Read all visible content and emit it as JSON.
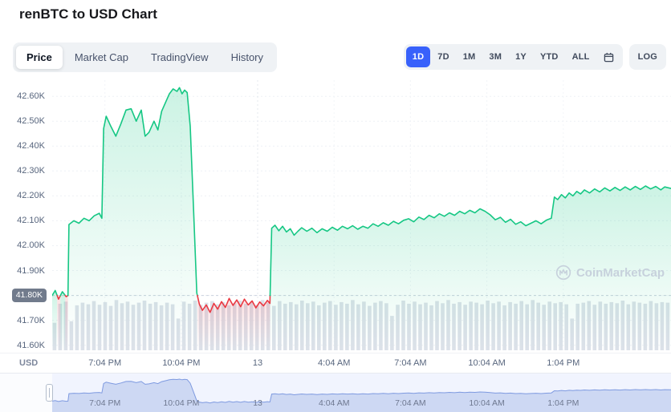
{
  "header": {
    "title": "renBTC to USD Chart"
  },
  "toolbar": {
    "tabs": [
      {
        "label": "Price",
        "active": true
      },
      {
        "label": "Market Cap",
        "active": false
      },
      {
        "label": "TradingView",
        "active": false
      },
      {
        "label": "History",
        "active": false
      }
    ],
    "ranges": [
      {
        "label": "1D",
        "active": true
      },
      {
        "label": "7D",
        "active": false
      },
      {
        "label": "1M",
        "active": false
      },
      {
        "label": "3M",
        "active": false
      },
      {
        "label": "1Y",
        "active": false
      },
      {
        "label": "YTD",
        "active": false
      },
      {
        "label": "ALL",
        "active": false
      }
    ],
    "log_label": "LOG"
  },
  "axis": {
    "currency_label": "USD"
  },
  "watermark": {
    "text": "CoinMarketCap"
  },
  "colors": {
    "up": "#16c784",
    "down": "#ea3943",
    "accent": "#3861fb",
    "volume": "#dce1e9",
    "nav_fill": "#c9d5f2",
    "nav_line": "#7e9ae0",
    "axis_text": "#58667e",
    "badge_bg": "#717b8c"
  },
  "chart_data": {
    "type": "line",
    "title": "renBTC to USD Chart",
    "unit": "USD",
    "range_selected": "1D",
    "open": 41800,
    "ylim": [
      41570,
      42665
    ],
    "t_range": [
      0,
      24.3
    ],
    "yticks": [
      {
        "v": 42600,
        "label": "42.60K",
        "badge": false
      },
      {
        "v": 42500,
        "label": "42.50K",
        "badge": false
      },
      {
        "v": 42400,
        "label": "42.40K",
        "badge": false
      },
      {
        "v": 42300,
        "label": "42.30K",
        "badge": false
      },
      {
        "v": 42200,
        "label": "42.20K",
        "badge": false
      },
      {
        "v": 42100,
        "label": "42.10K",
        "badge": false
      },
      {
        "v": 42000,
        "label": "42.00K",
        "badge": false
      },
      {
        "v": 41900,
        "label": "41.90K",
        "badge": false
      },
      {
        "v": 41800,
        "label": "41.80K",
        "badge": true
      },
      {
        "v": 41700,
        "label": "41.70K",
        "badge": false
      },
      {
        "v": 41600,
        "label": "41.60K",
        "badge": false
      }
    ],
    "xticks": [
      {
        "label": "7:04 PM",
        "t": 2.07,
        "day": false
      },
      {
        "label": "10:04 PM",
        "t": 5.07,
        "day": false
      },
      {
        "label": "13",
        "t": 8.07,
        "day": true
      },
      {
        "label": "4:04 AM",
        "t": 11.07,
        "day": false
      },
      {
        "label": "7:04 AM",
        "t": 14.07,
        "day": false
      },
      {
        "label": "10:04 AM",
        "t": 17.07,
        "day": false
      },
      {
        "label": "1:04 PM",
        "t": 20.07,
        "day": false
      }
    ],
    "series": [
      [
        0,
        41800
      ],
      [
        0.12,
        41820
      ],
      [
        0.25,
        41785
      ],
      [
        0.4,
        41815
      ],
      [
        0.55,
        41795
      ],
      [
        0.62,
        41800
      ],
      [
        0.66,
        42085
      ],
      [
        0.85,
        42100
      ],
      [
        1.05,
        42090
      ],
      [
        1.25,
        42110
      ],
      [
        1.45,
        42100
      ],
      [
        1.65,
        42120
      ],
      [
        1.85,
        42130
      ],
      [
        1.95,
        42110
      ],
      [
        2.02,
        42470
      ],
      [
        2.12,
        42520
      ],
      [
        2.3,
        42480
      ],
      [
        2.5,
        42440
      ],
      [
        2.7,
        42490
      ],
      [
        2.9,
        42545
      ],
      [
        3.1,
        42550
      ],
      [
        3.3,
        42500
      ],
      [
        3.5,
        42545
      ],
      [
        3.65,
        42440
      ],
      [
        3.8,
        42455
      ],
      [
        4.0,
        42500
      ],
      [
        4.15,
        42465
      ],
      [
        4.3,
        42540
      ],
      [
        4.45,
        42575
      ],
      [
        4.6,
        42610
      ],
      [
        4.75,
        42630
      ],
      [
        4.9,
        42620
      ],
      [
        5.0,
        42635
      ],
      [
        5.1,
        42610
      ],
      [
        5.2,
        42625
      ],
      [
        5.3,
        42615
      ],
      [
        5.42,
        42480
      ],
      [
        5.55,
        42150
      ],
      [
        5.68,
        41810
      ],
      [
        5.78,
        41765
      ],
      [
        5.9,
        41740
      ],
      [
        6.05,
        41762
      ],
      [
        6.2,
        41732
      ],
      [
        6.35,
        41768
      ],
      [
        6.5,
        41745
      ],
      [
        6.65,
        41775
      ],
      [
        6.8,
        41752
      ],
      [
        6.95,
        41788
      ],
      [
        7.1,
        41760
      ],
      [
        7.25,
        41782
      ],
      [
        7.4,
        41755
      ],
      [
        7.55,
        41785
      ],
      [
        7.7,
        41762
      ],
      [
        7.85,
        41778
      ],
      [
        8.0,
        41750
      ],
      [
        8.15,
        41774
      ],
      [
        8.3,
        41758
      ],
      [
        8.45,
        41780
      ],
      [
        8.55,
        41768
      ],
      [
        8.62,
        42070
      ],
      [
        8.75,
        42082
      ],
      [
        8.9,
        42060
      ],
      [
        9.05,
        42078
      ],
      [
        9.2,
        42055
      ],
      [
        9.35,
        42068
      ],
      [
        9.5,
        42042
      ],
      [
        9.65,
        42058
      ],
      [
        9.8,
        42072
      ],
      [
        10.0,
        42058
      ],
      [
        10.2,
        42070
      ],
      [
        10.4,
        42052
      ],
      [
        10.6,
        42068
      ],
      [
        10.8,
        42058
      ],
      [
        11.0,
        42074
      ],
      [
        11.2,
        42062
      ],
      [
        11.4,
        42078
      ],
      [
        11.6,
        42068
      ],
      [
        11.8,
        42080
      ],
      [
        12.0,
        42066
      ],
      [
        12.2,
        42078
      ],
      [
        12.4,
        42070
      ],
      [
        12.6,
        42088
      ],
      [
        12.8,
        42078
      ],
      [
        13.0,
        42092
      ],
      [
        13.2,
        42082
      ],
      [
        13.4,
        42098
      ],
      [
        13.6,
        42088
      ],
      [
        13.8,
        42102
      ],
      [
        14.0,
        42108
      ],
      [
        14.2,
        42096
      ],
      [
        14.4,
        42115
      ],
      [
        14.6,
        42105
      ],
      [
        14.8,
        42122
      ],
      [
        15.0,
        42112
      ],
      [
        15.2,
        42128
      ],
      [
        15.4,
        42118
      ],
      [
        15.6,
        42132
      ],
      [
        15.8,
        42122
      ],
      [
        16.0,
        42138
      ],
      [
        16.2,
        42128
      ],
      [
        16.4,
        42142
      ],
      [
        16.6,
        42132
      ],
      [
        16.8,
        42148
      ],
      [
        17.0,
        42138
      ],
      [
        17.2,
        42124
      ],
      [
        17.4,
        42104
      ],
      [
        17.6,
        42114
      ],
      [
        17.8,
        42094
      ],
      [
        18.0,
        42106
      ],
      [
        18.2,
        42086
      ],
      [
        18.4,
        42096
      ],
      [
        18.6,
        42080
      ],
      [
        18.8,
        42090
      ],
      [
        19.0,
        42100
      ],
      [
        19.2,
        42088
      ],
      [
        19.4,
        42102
      ],
      [
        19.6,
        42110
      ],
      [
        19.72,
        42195
      ],
      [
        19.85,
        42185
      ],
      [
        20.0,
        42205
      ],
      [
        20.15,
        42192
      ],
      [
        20.3,
        42212
      ],
      [
        20.45,
        42200
      ],
      [
        20.6,
        42218
      ],
      [
        20.75,
        42208
      ],
      [
        20.9,
        42224
      ],
      [
        21.1,
        42212
      ],
      [
        21.3,
        42228
      ],
      [
        21.5,
        42216
      ],
      [
        21.7,
        42232
      ],
      [
        21.9,
        42220
      ],
      [
        22.1,
        42234
      ],
      [
        22.3,
        42222
      ],
      [
        22.5,
        42236
      ],
      [
        22.7,
        42224
      ],
      [
        22.9,
        42238
      ],
      [
        23.1,
        42226
      ],
      [
        23.3,
        42240
      ],
      [
        23.5,
        42228
      ],
      [
        23.7,
        42238
      ],
      [
        23.9,
        42224
      ],
      [
        24.05,
        42236
      ],
      [
        24.3,
        42230
      ]
    ],
    "volumes": [
      0.52,
      0.88,
      0.92,
      0.55,
      0.85,
      0.9,
      0.87,
      0.93,
      0.86,
      0.91,
      0.84,
      0.95,
      0.89,
      0.92,
      0.86,
      0.9,
      0.94,
      0.88,
      0.91,
      0.85,
      0.9,
      0.87,
      0.6,
      0.92,
      0.88,
      0.94,
      0.86,
      0.9,
      0.93,
      0.87,
      0.91,
      0.85,
      0.89,
      0.94,
      0.88,
      0.92,
      0.86,
      0.95,
      0.9,
      0.84,
      0.93,
      0.88,
      0.91,
      0.87,
      0.94,
      0.89,
      0.92,
      0.85,
      0.9,
      0.93,
      0.86,
      0.91,
      0.88,
      0.95,
      0.87,
      0.92,
      0.84,
      0.9,
      0.93,
      0.89,
      0.65,
      0.86,
      0.94,
      0.88,
      0.92,
      0.87,
      0.9,
      0.85,
      0.93,
      0.89,
      0.95,
      0.88,
      0.91,
      0.86,
      0.92,
      0.9,
      0.87,
      0.94,
      0.89,
      0.92,
      0.85,
      0.91,
      0.88,
      0.93,
      0.87,
      0.95,
      0.9,
      0.86,
      0.92,
      0.89,
      0.91,
      0.87,
      0.6,
      0.88,
      0.9,
      0.93,
      0.86,
      0.92,
      0.88,
      0.91,
      0.89,
      0.94,
      0.87,
      0.92,
      0.9,
      0.88,
      0.93,
      0.89,
      0.91,
      0.9
    ]
  }
}
